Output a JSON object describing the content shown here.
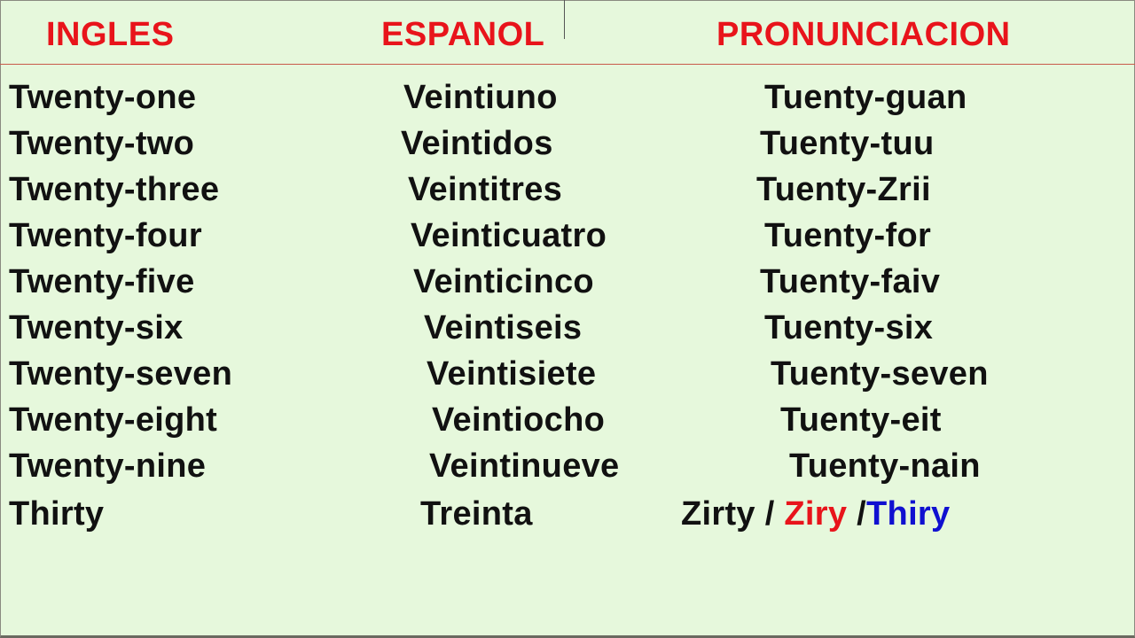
{
  "headers": {
    "english": "INGLES",
    "spanish": "ESPANOL",
    "pronunciation": "PRONUNCIACION"
  },
  "colors": {
    "header": "#e8141b",
    "background": "#e6f8dc",
    "text": "#111111",
    "alt_red": "#e8141b",
    "alt_blue": "#1010d0"
  },
  "rows": [
    {
      "english": "Twenty-one",
      "spanish": "Veintiuno",
      "pronunciation": "Tuenty-guan"
    },
    {
      "english": "Twenty-two",
      "spanish": "Veintidos",
      "pronunciation": "Tuenty-tuu"
    },
    {
      "english": "Twenty-three",
      "spanish": "Veintitres",
      "pronunciation": "Tuenty-Zrii"
    },
    {
      "english": "Twenty-four",
      "spanish": "Veinticuatro",
      "pronunciation": "Tuenty-for"
    },
    {
      "english": "Twenty-five",
      "spanish": "Veinticinco",
      "pronunciation": "Tuenty-faiv"
    },
    {
      "english": "Twenty-six",
      "spanish": "Veintiseis",
      "pronunciation": "Tuenty-six"
    },
    {
      "english": "Twenty-seven",
      "spanish": "Veintisiete",
      "pronunciation": "Tuenty-seven"
    },
    {
      "english": "Twenty-eight",
      "spanish": "Veintiocho",
      "pronunciation": "Tuenty-eit"
    },
    {
      "english": "Twenty-nine",
      "spanish": "Veintinueve",
      "pronunciation": "Tuenty-nain"
    }
  ],
  "last_row": {
    "english": "Thirty",
    "spanish": "Treinta",
    "pronunciation_1": "Zirty / ",
    "pronunciation_2": "Ziry",
    "pronunciation_sep": " /",
    "pronunciation_3": "Thiry"
  }
}
